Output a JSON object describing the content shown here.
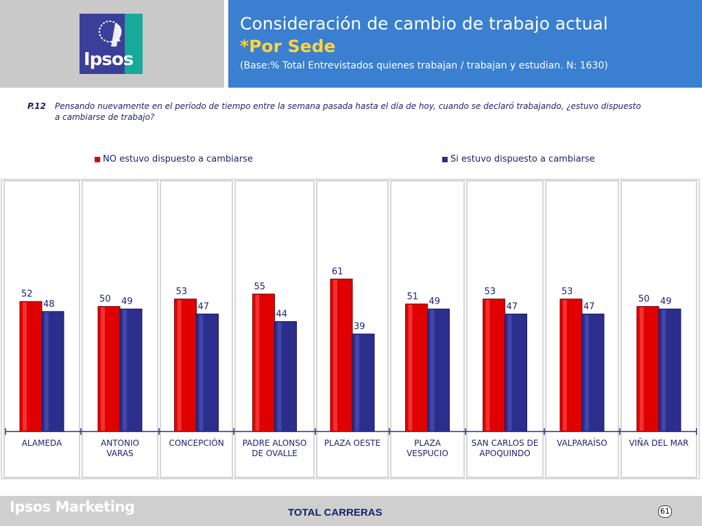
{
  "header": {
    "logo_text": "Ipsos",
    "title_line1": "Consideración de cambio de trabajo actual",
    "title_line2": "*Por Sede",
    "subtitle": "(Base:% Total Entrevistados quienes trabajan / trabajan y estudian. N: 1630)"
  },
  "question": {
    "number": "P.12",
    "text_line1": "Pensando nuevamente en el período de tiempo entre la semana pasada hasta el día de hoy, cuando se declaró trabajando, ¿estuvo dispuesto",
    "text_line2": "a cambiarse de trabajo?"
  },
  "colors": {
    "red": "#e00000",
    "blue": "#2b2e8c",
    "header_blue": "#3a7fd0",
    "accent_yellow": "#ffd53a"
  },
  "chart_data": {
    "type": "bar",
    "categories": [
      [
        "ALAMEDA"
      ],
      [
        "ANTONIO",
        "VARAS"
      ],
      [
        "CONCEPCIÓN"
      ],
      [
        "PADRE ALONSO",
        "DE OVALLE"
      ],
      [
        "PLAZA OESTE"
      ],
      [
        "PLAZA",
        "VESPUCIO"
      ],
      [
        "SAN CARLOS DE",
        "APOQUINDO"
      ],
      [
        "VALPARAÍSO"
      ],
      [
        "VIÑA DEL MAR"
      ]
    ],
    "series": [
      {
        "name": "NO estuvo dispuesto a cambiarse",
        "color": "#e00000",
        "values": [
          52,
          50,
          53,
          55,
          61,
          51,
          53,
          53,
          50
        ]
      },
      {
        "name": "Si estuvo dispuesto a cambiarse",
        "color": "#2b2e8c",
        "values": [
          48,
          49,
          47,
          44,
          39,
          49,
          47,
          47,
          49
        ]
      }
    ],
    "ylim": [
      0,
      100
    ],
    "legend_position": "top",
    "grid": false
  },
  "footer": {
    "brand": "Ipsos Marketing",
    "center_text": "TOTAL CARRERAS",
    "page_number": "61"
  }
}
